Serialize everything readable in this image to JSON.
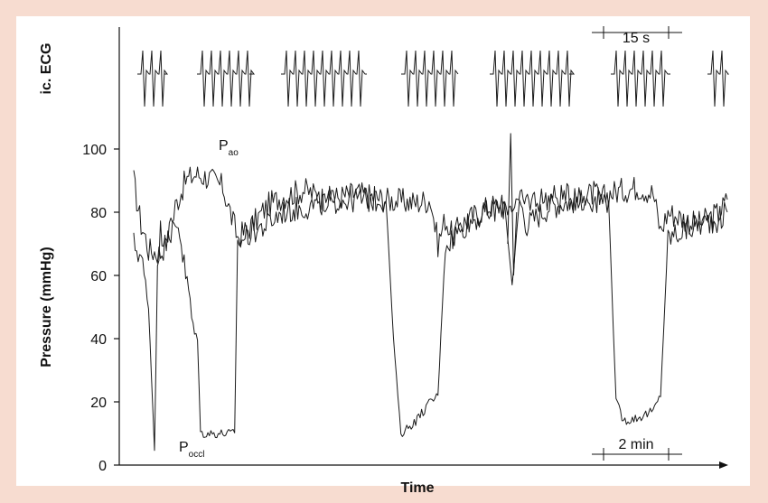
{
  "chart_data": {
    "type": "line",
    "xlabel": "Time",
    "ylabel": "Pressure (mmHg)",
    "ecg_label": "ic. ECG",
    "ylim": [
      0,
      105
    ],
    "yticks": [
      "0",
      "20",
      "40",
      "60",
      "80",
      "100"
    ],
    "ytick_values": [
      0,
      20,
      40,
      60,
      80,
      100
    ],
    "grid": false,
    "legend": "none",
    "scale_bar_ecg": "15 s",
    "scale_bar_time": "2 min",
    "annotations": [
      {
        "text": "P",
        "sub": "ao"
      },
      {
        "text": "P",
        "sub": "occl"
      }
    ],
    "series": [
      {
        "name": "Pao",
        "x": [
          0,
          0.02,
          0.05,
          0.08,
          0.1,
          0.18,
          0.25,
          0.28,
          0.35,
          0.42,
          0.5,
          0.6,
          0.7,
          0.8,
          0.9,
          1.0,
          1.15,
          1.3,
          1.5,
          1.7,
          1.9,
          2.0,
          2.05,
          2.1,
          2.15,
          2.2,
          2.4,
          2.5,
          2.55,
          2.6,
          2.65,
          2.8,
          3.0,
          3.1,
          3.15,
          3.2,
          3.4,
          3.5,
          3.55,
          3.6,
          3.8,
          3.95,
          4.0
        ],
        "y": [
          90,
          84,
          76,
          72,
          68,
          67,
          73,
          82,
          90,
          92,
          91,
          88,
          72,
          76,
          82,
          85,
          87,
          84,
          86,
          84,
          83,
          84,
          70,
          78,
          72,
          76,
          82,
          82,
          57,
          84,
          76,
          82,
          84,
          86,
          84,
          86,
          88,
          86,
          74,
          80,
          76,
          80,
          84
        ]
      },
      {
        "name": "Pocc",
        "x": [
          0,
          0.05,
          0.1,
          0.14,
          0.16,
          0.18,
          0.2,
          0.25,
          0.3,
          0.35,
          0.38,
          0.4,
          0.43,
          0.45,
          0.5,
          0.6,
          0.68,
          0.7,
          0.8,
          0.9,
          1.0,
          1.2,
          1.4,
          1.7,
          1.75,
          1.8,
          1.85,
          1.9,
          2.0,
          2.05,
          2.1,
          2.15,
          2.2,
          2.3,
          2.5,
          2.7,
          2.9,
          3.1,
          3.2,
          3.25,
          3.3,
          3.4,
          3.5,
          3.55,
          3.6,
          3.8,
          3.95,
          4.0
        ],
        "y": [
          70,
          66,
          50,
          5,
          60,
          74,
          73,
          75,
          77,
          60,
          52,
          42,
          40,
          10,
          10,
          10,
          10,
          70,
          74,
          76,
          80,
          82,
          84,
          84,
          40,
          10,
          12,
          14,
          20,
          22,
          70,
          72,
          75,
          78,
          82,
          84,
          85,
          84,
          84,
          20,
          14,
          15,
          17,
          22,
          72,
          76,
          78,
          80
        ]
      }
    ]
  }
}
